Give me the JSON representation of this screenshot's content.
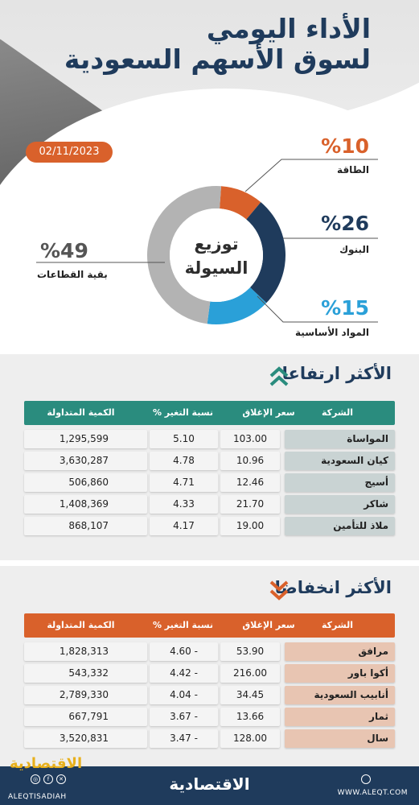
{
  "header": {
    "title_line1": "الأداء اليومي",
    "title_line2": "لسوق الأسهم السعودية",
    "date": "02/11/2023"
  },
  "colors": {
    "navy": "#1f3b5c",
    "orange": "#d9612b",
    "teal": "#2a8c7e",
    "blue": "#2aa0d8",
    "gray": "#b3b3b3"
  },
  "chart_data": {
    "type": "pie",
    "title": "توزيع السيولة",
    "title_lines": [
      "توزيع",
      "السيولة"
    ],
    "slices": [
      {
        "label": "الطاقة",
        "value": 10,
        "display": "%10",
        "color": "#d9612b"
      },
      {
        "label": "البنوك",
        "value": 26,
        "display": "%26",
        "color": "#1f3b5c"
      },
      {
        "label": "المواد الأساسية",
        "value": 15,
        "display": "%15",
        "color": "#2aa0d8"
      },
      {
        "label": "بقية القطاعات",
        "value": 49,
        "display": "%49",
        "color": "#b3b3b3"
      }
    ]
  },
  "gainers": {
    "title": "الأكثر ارتفاعا",
    "headers": {
      "company": "الشركة",
      "close": "سعر الإغلاق",
      "change": "نسبة التغير %",
      "volume": "الكمية المتداولة"
    },
    "rows": [
      {
        "company": "المواساة",
        "close": "103.00",
        "change": "5.10",
        "volume": "1,295,599"
      },
      {
        "company": "كيان السعودية",
        "close": "10.96",
        "change": "4.78",
        "volume": "3,630,287"
      },
      {
        "company": "أسيج",
        "close": "12.46",
        "change": "4.71",
        "volume": "506,860"
      },
      {
        "company": "شاكر",
        "close": "21.70",
        "change": "4.33",
        "volume": "1,408,369"
      },
      {
        "company": "ملاذ للتأمين",
        "close": "19.00",
        "change": "4.17",
        "volume": "868,107"
      }
    ]
  },
  "losers": {
    "title": "الأكثر انخفاضا",
    "headers": {
      "company": "الشركة",
      "close": "سعر الإغلاق",
      "change": "نسبة التغير %",
      "volume": "الكمية المتداولة"
    },
    "rows": [
      {
        "company": "مرافق",
        "close": "53.90",
        "change": "4.60 -",
        "volume": "1,828,313"
      },
      {
        "company": "أكوا باور",
        "close": "216.00",
        "change": "4.42 -",
        "volume": "543,332"
      },
      {
        "company": "أنابيب السعودية",
        "close": "34.45",
        "change": "4.04 -",
        "volume": "2,789,330"
      },
      {
        "company": "ثمار",
        "close": "13.66",
        "change": "3.67 -",
        "volume": "667,791"
      },
      {
        "company": "سال",
        "close": "128.00",
        "change": "3.47 -",
        "volume": "3,520,831"
      }
    ]
  },
  "footer": {
    "logo": "الاقتصادية",
    "handle": "ALEQTISADIAH",
    "site": "WWW.ALEQT.COM",
    "icons": [
      "instagram-icon",
      "facebook-icon",
      "x-icon"
    ]
  }
}
